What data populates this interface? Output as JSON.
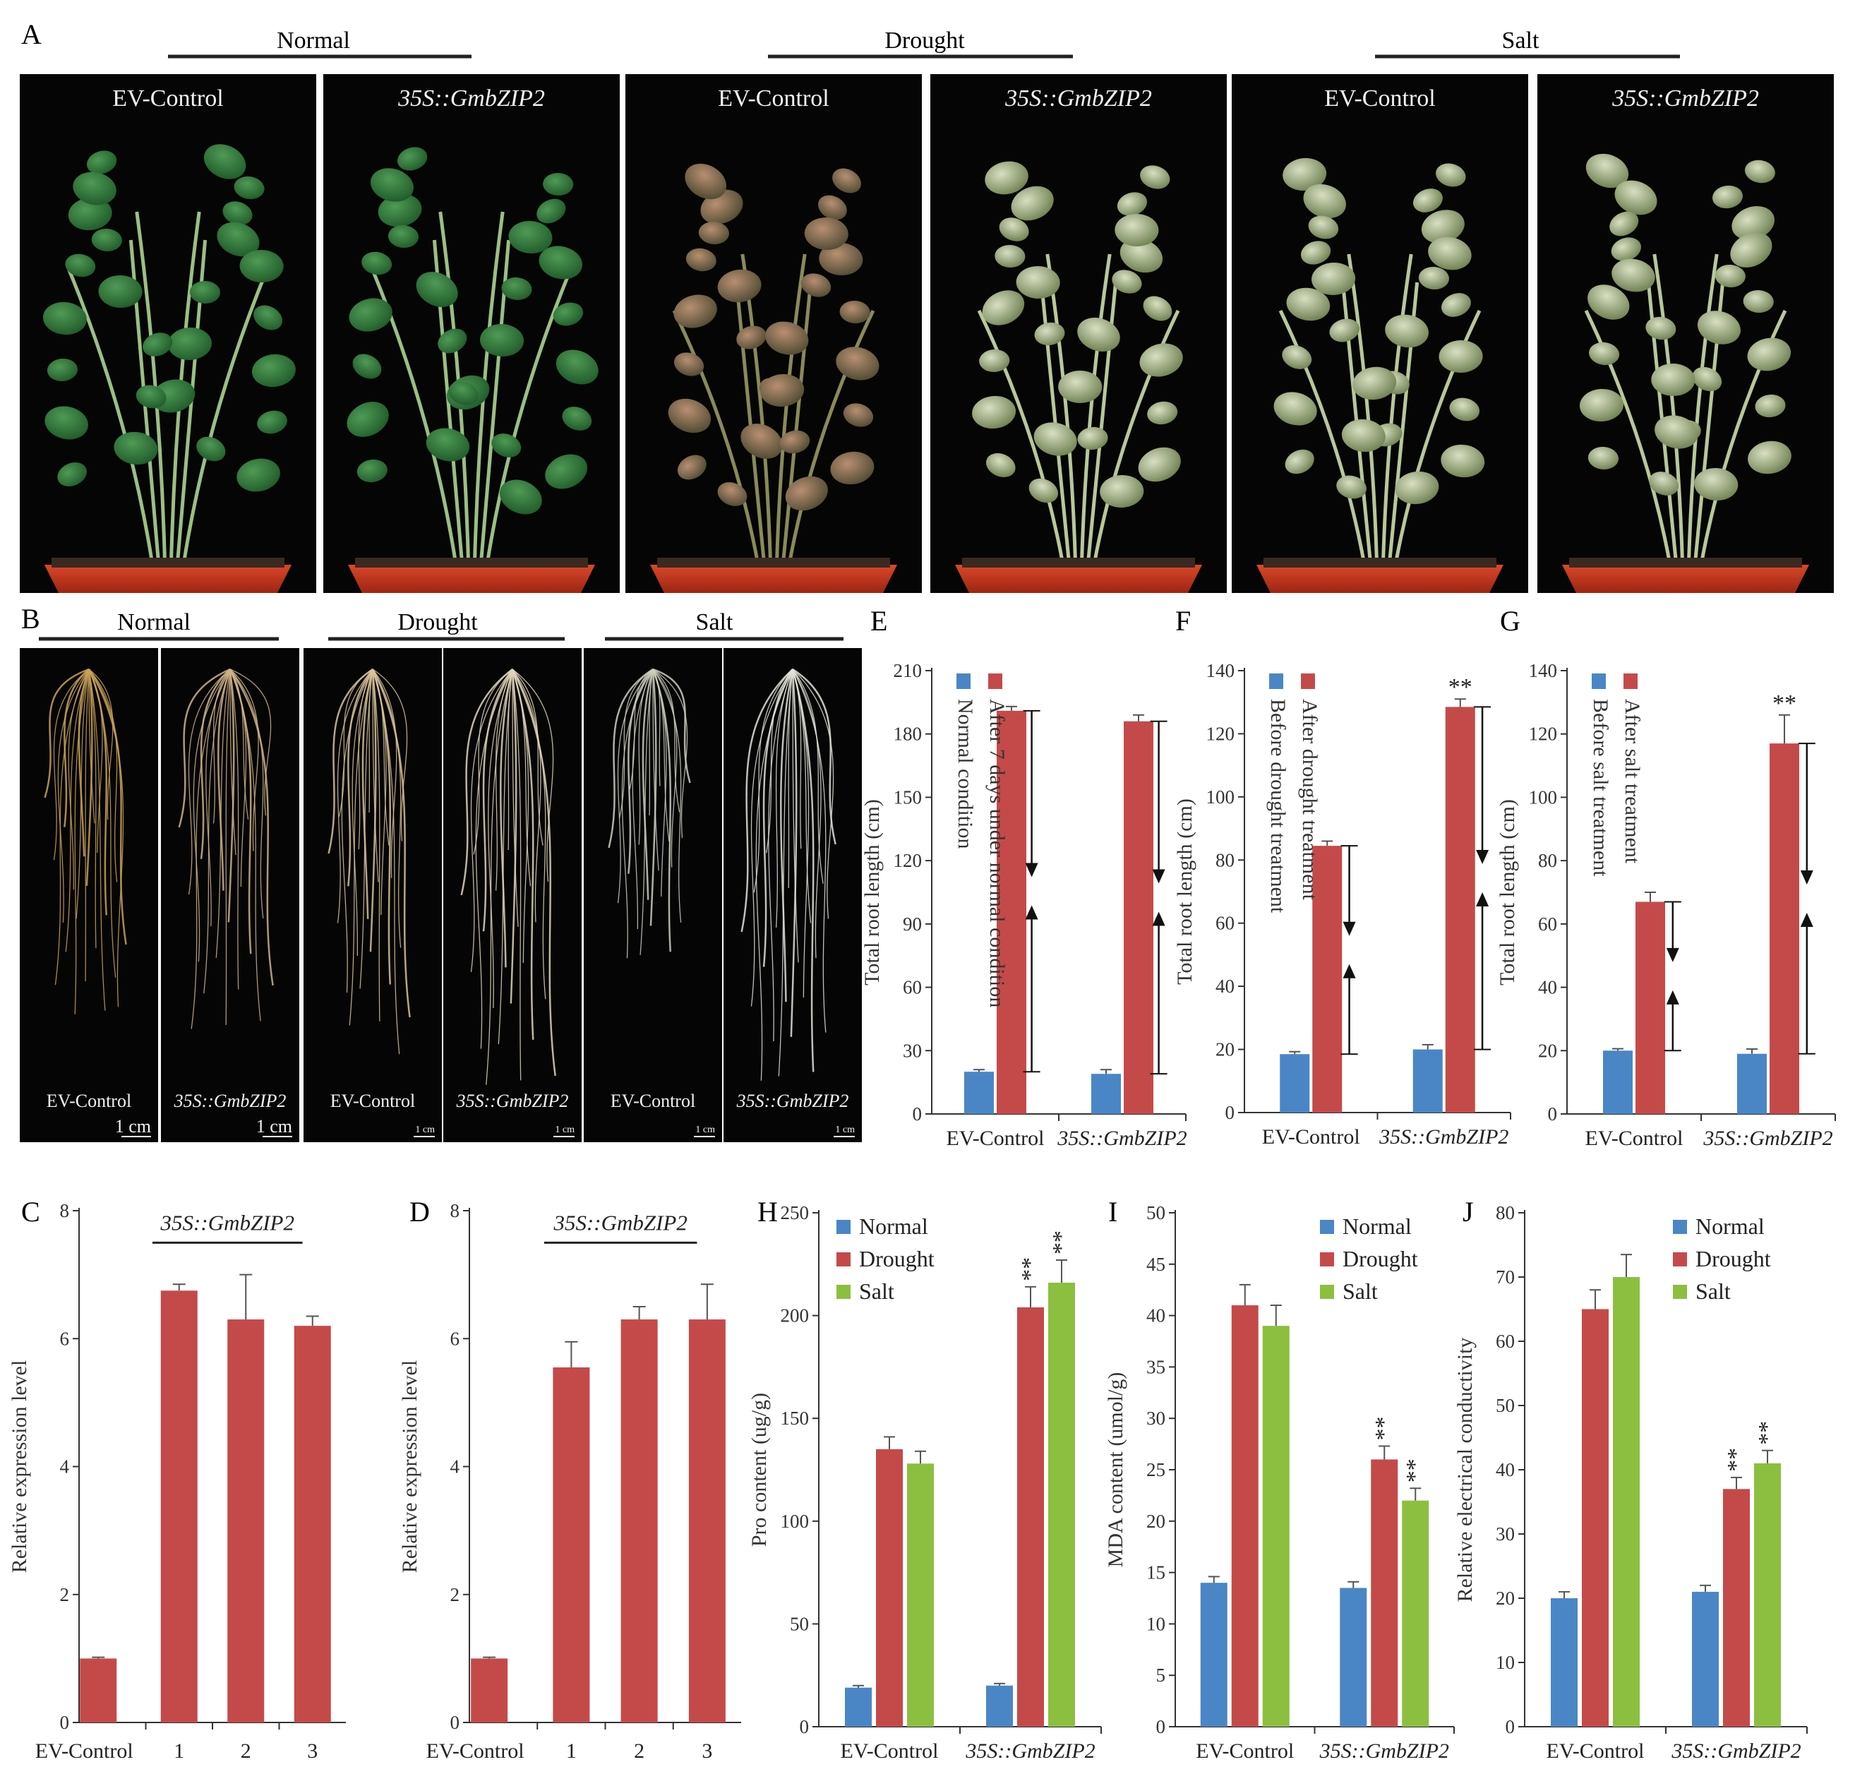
{
  "panels": {
    "A": {
      "letter": "A",
      "groups": [
        "Normal",
        "Drought",
        "Salt"
      ],
      "photos": [
        "EV-Control",
        "35S::GmbZIP2",
        "EV-Control",
        "35S::GmbZIP2",
        "EV-Control",
        "35S::GmbZIP2"
      ]
    },
    "B": {
      "letter": "B",
      "groups": [
        "Normal",
        "Drought",
        "Salt"
      ],
      "photos": [
        "EV-Control",
        "35S::GmbZIP2",
        "EV-Control",
        "35S::GmbZIP2",
        "EV-Control",
        "35S::GmbZIP2"
      ],
      "scale_bars": [
        "1 cm",
        "1 cm",
        "1 cm",
        "1 cm",
        "1 cm",
        "1 cm"
      ]
    }
  },
  "colors": {
    "normal": "#4a86c5",
    "drought": "#c44a4a",
    "salt": "#8cbf3f",
    "photo_bg": "#050505",
    "pot": "#c73a1c"
  },
  "chart_data": [
    {
      "id": "E",
      "letter": "E",
      "type": "bar",
      "ylabel": "Total root length (cm)",
      "ylim": [
        0,
        210
      ],
      "yticks": [
        0,
        30,
        60,
        90,
        120,
        150,
        180,
        210
      ],
      "categories": [
        "EV-Control",
        "35S::GmbZIP2"
      ],
      "series": [
        {
          "name": "Normal condition",
          "values": [
            20,
            19
          ],
          "errors": [
            1,
            2
          ]
        },
        {
          "name": "After 7 days under normal condition",
          "values": [
            191,
            186
          ],
          "errors": [
            2,
            3
          ]
        }
      ],
      "significance": [
        "",
        ""
      ]
    },
    {
      "id": "F",
      "letter": "F",
      "type": "bar",
      "ylabel": "Total root length (cm)",
      "ylim": [
        0,
        140
      ],
      "yticks": [
        0,
        20,
        40,
        60,
        80,
        100,
        120,
        140
      ],
      "categories": [
        "EV-Control",
        "35S::GmbZIP2"
      ],
      "series": [
        {
          "name": "Before drought treatment",
          "values": [
            18.5,
            20
          ],
          "errors": [
            0.8,
            1.5
          ]
        },
        {
          "name": "After drought treatment",
          "values": [
            84.5,
            128.5
          ],
          "errors": [
            1.5,
            2.5
          ]
        }
      ],
      "significance": [
        "",
        "**"
      ]
    },
    {
      "id": "G",
      "letter": "G",
      "type": "bar",
      "ylabel": "Total root length (cm)",
      "ylim": [
        0,
        140
      ],
      "yticks": [
        0,
        20,
        40,
        60,
        80,
        100,
        120,
        140
      ],
      "categories": [
        "EV-Control",
        "35S::GmbZIP2"
      ],
      "series": [
        {
          "name": "Before salt treatment",
          "values": [
            20,
            19
          ],
          "errors": [
            0.6,
            1.5
          ]
        },
        {
          "name": "After salt treatment",
          "values": [
            67,
            117
          ],
          "errors": [
            3,
            9
          ]
        }
      ],
      "significance": [
        "",
        "**"
      ]
    },
    {
      "id": "C",
      "letter": "C",
      "type": "bar",
      "ylabel": "Relative expression level",
      "ylim": [
        0,
        8
      ],
      "yticks": [
        0,
        2,
        4,
        6,
        8
      ],
      "categories": [
        "EV-Control",
        "1",
        "2",
        "3"
      ],
      "values": [
        1.0,
        6.75,
        6.3,
        6.2
      ],
      "errors": [
        0.02,
        0.1,
        0.7,
        0.15
      ],
      "bracket_label": "35S::GmbZIP2"
    },
    {
      "id": "D",
      "letter": "D",
      "type": "bar",
      "ylabel": "Relative expression level",
      "ylim": [
        0,
        8
      ],
      "yticks": [
        0,
        2,
        4,
        6,
        8
      ],
      "categories": [
        "EV-Control",
        "1",
        "2",
        "3"
      ],
      "values": [
        1.0,
        5.55,
        6.3,
        6.3
      ],
      "errors": [
        0.02,
        0.4,
        0.2,
        0.55
      ],
      "bracket_label": "35S::GmbZIP2"
    },
    {
      "id": "H",
      "letter": "H",
      "type": "bar",
      "ylabel": "Pro content (ug/g)",
      "ylim": [
        0,
        250
      ],
      "yticks": [
        0,
        50,
        100,
        150,
        200,
        250
      ],
      "categories": [
        "EV-Control",
        "35S::GmbZIP2"
      ],
      "series": [
        {
          "name": "Normal",
          "values": [
            19,
            20
          ],
          "errors": [
            1,
            1
          ]
        },
        {
          "name": "Drought",
          "values": [
            135,
            204
          ],
          "errors": [
            6,
            10
          ]
        },
        {
          "name": "Salt",
          "values": [
            128,
            216
          ],
          "errors": [
            6,
            11
          ]
        }
      ],
      "significance": [
        [
          "",
          "",
          ""
        ],
        [
          "",
          "**",
          "**"
        ]
      ]
    },
    {
      "id": "I",
      "letter": "I",
      "type": "bar",
      "ylabel": "MDA content (umol/g)",
      "ylim": [
        0,
        50
      ],
      "yticks": [
        0,
        5,
        10,
        15,
        20,
        25,
        30,
        35,
        40,
        45,
        50
      ],
      "categories": [
        "EV-Control",
        "35S::GmbZIP2"
      ],
      "series": [
        {
          "name": "Normal",
          "values": [
            14,
            13.5
          ],
          "errors": [
            0.6,
            0.6
          ]
        },
        {
          "name": "Drought",
          "values": [
            41,
            26
          ],
          "errors": [
            2,
            1.3
          ]
        },
        {
          "name": "Salt",
          "values": [
            39,
            22
          ],
          "errors": [
            2,
            1.2
          ]
        }
      ],
      "significance": [
        [
          "",
          "",
          ""
        ],
        [
          "",
          "**",
          "**"
        ]
      ]
    },
    {
      "id": "J",
      "letter": "J",
      "type": "bar",
      "ylabel": "Relative electrical conductivity",
      "ylim": [
        0,
        80
      ],
      "yticks": [
        0,
        10,
        20,
        30,
        40,
        50,
        60,
        70,
        80
      ],
      "categories": [
        "EV-Control",
        "35S::GmbZIP2"
      ],
      "series": [
        {
          "name": "Normal",
          "values": [
            20,
            21
          ],
          "errors": [
            1,
            1
          ]
        },
        {
          "name": "Drought",
          "values": [
            65,
            37
          ],
          "errors": [
            3,
            1.8
          ]
        },
        {
          "name": "Salt",
          "values": [
            70,
            41
          ],
          "errors": [
            3.5,
            2
          ]
        }
      ],
      "significance": [
        [
          "",
          "",
          ""
        ],
        [
          "",
          "**",
          "**"
        ]
      ]
    }
  ]
}
